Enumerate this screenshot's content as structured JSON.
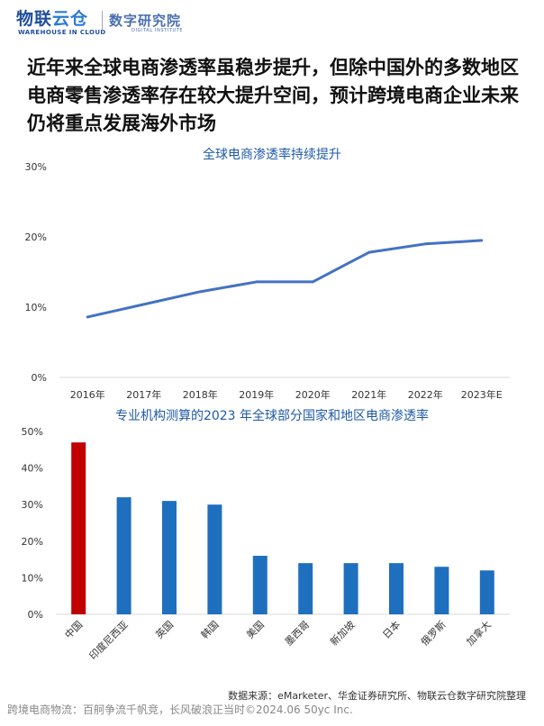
{
  "header": {
    "logo_text_1": "物联",
    "logo_text_2": "云仓",
    "logo_subtext": "WAREHOUSE IN CLOUD",
    "institute_name": "数字研究院",
    "institute_subtext": "DIGITAL INSTITUTE"
  },
  "headline": "近年来全球电商渗透率虽稳步提升，但除中国外的多数地区电商零售渗透率存在较大提升空间，预计跨境电商企业未来仍将重点发展海外市场",
  "colors": {
    "line": "#4472c4",
    "bar": "#1f6fbf",
    "highlight_bar": "#c00000",
    "title": "#1f5aa6"
  },
  "chart_data": [
    {
      "type": "line",
      "title": "全球电商渗透率持续提升",
      "categories": [
        "2016年",
        "2017年",
        "2018年",
        "2019年",
        "2020年",
        "2021年",
        "2022年",
        "2023年E"
      ],
      "series": [
        {
          "values": [
            8.6,
            10.4,
            12.2,
            13.6,
            13.6,
            17.8,
            19.0,
            19.5
          ]
        }
      ],
      "yticks": [
        "0%",
        "10%",
        "20%",
        "30%"
      ],
      "ylim": [
        0,
        30
      ],
      "xlabel": "",
      "ylabel": "",
      "grid": false
    },
    {
      "type": "bar",
      "title": "专业机构测算的2023 年全球部分国家和地区电商渗透率",
      "categories": [
        "中国",
        "印度尼西亚",
        "英国",
        "韩国",
        "美国",
        "墨西哥",
        "新加坡",
        "日本",
        "俄罗斯",
        "加拿大"
      ],
      "values": [
        47,
        32,
        31,
        30,
        16,
        14,
        14,
        14,
        13,
        12
      ],
      "highlight_index": 0,
      "yticks": [
        "0%",
        "10%",
        "20%",
        "30%",
        "40%",
        "50%"
      ],
      "ylim": [
        0,
        50
      ],
      "xlabel": "",
      "ylabel": "",
      "grid": false
    }
  ],
  "footer": {
    "source": "数据来源：eMarketer、华金证券研究所、物联云仓数字研究院整理",
    "note": "跨境电商物流：百舸争流千帆竞，长风破浪正当时©2024.06 50yc Inc."
  }
}
